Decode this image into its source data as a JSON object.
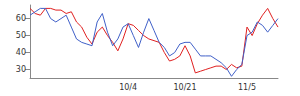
{
  "chart_data": {
    "type": "line",
    "categories": [
      null,
      null,
      null,
      null,
      null,
      null,
      null,
      null,
      null,
      null,
      null,
      null,
      null,
      null,
      null,
      null,
      null,
      null,
      null,
      "10/4",
      null,
      null,
      null,
      null,
      null,
      null,
      null,
      null,
      null,
      null,
      "10/21",
      null,
      null,
      null,
      null,
      null,
      null,
      null,
      null,
      null,
      null,
      null,
      "11/5",
      null,
      null,
      null,
      null,
      null,
      null
    ],
    "series": [
      {
        "color": "#e02020",
        "values": [
          66,
          63,
          62,
          66,
          66,
          65,
          65,
          63,
          64,
          58,
          55,
          49,
          45,
          52,
          55,
          50,
          46,
          41,
          48,
          57,
          56,
          53,
          50,
          48,
          47,
          46,
          40,
          35,
          36,
          38,
          44,
          38,
          28,
          29,
          30,
          31,
          32,
          32,
          30,
          33,
          31,
          32,
          55,
          50,
          57,
          62,
          66,
          60,
          55
        ]
      },
      {
        "color": "#4060c8",
        "values": [
          62,
          64,
          66,
          66,
          60,
          58,
          60,
          62,
          55,
          48,
          46,
          45,
          44,
          58,
          63,
          52,
          44,
          48,
          55,
          57,
          50,
          43,
          52,
          60,
          53,
          46,
          43,
          38,
          40,
          45,
          46,
          46,
          42,
          38,
          38,
          38,
          36,
          34,
          31,
          26,
          30,
          33,
          50,
          52,
          58,
          56,
          52,
          56,
          60
        ]
      }
    ],
    "ylim": [
      25,
      68
    ],
    "yticks": [
      30,
      40,
      50,
      60
    ],
    "grid": false
  }
}
